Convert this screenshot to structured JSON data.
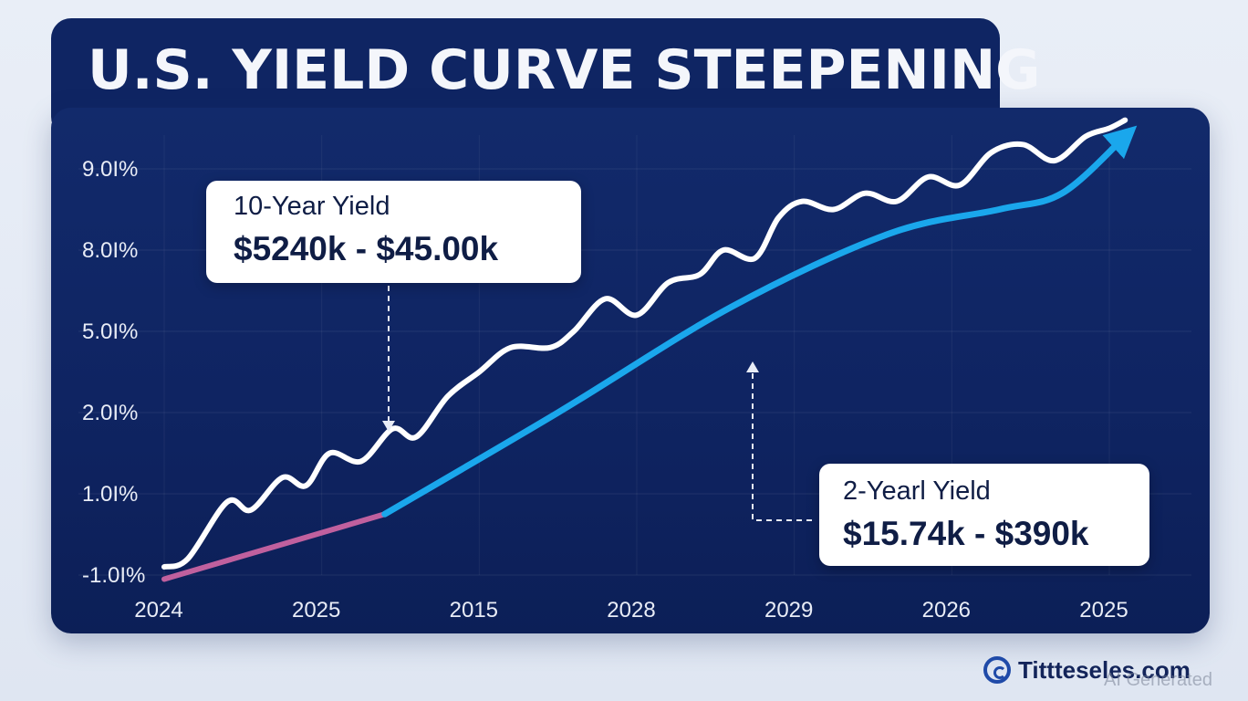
{
  "title": "U.S. YIELD CURVE STEEPENING",
  "callouts": {
    "ten_year": {
      "label": "10-Year Yield",
      "value": "$5240k - $45.00k"
    },
    "two_year": {
      "label": "2-Yearl Yield",
      "value": "$15.74k - $390k"
    }
  },
  "brand": {
    "name": "Tittteseles.com",
    "icon": "c-logo-icon"
  },
  "watermark": "AI Generated",
  "colors": {
    "panel": "#0f2563",
    "ten_year_line": "#ffffff",
    "two_year_line": "#1aa7ec",
    "two_year_early": "#c0609e"
  },
  "chart_data": {
    "type": "line",
    "title": "U.S. YIELD CURVE STEEPENING",
    "y_ticks": [
      "9.0I%",
      "8.0I%",
      "5.0I%",
      "2.0I%",
      "1.0I%",
      "-1.0I%"
    ],
    "x_ticks": [
      "2024",
      "2025",
      "2015",
      "2028",
      "2029",
      "2026",
      "2025"
    ],
    "y_index_range": [
      0,
      5
    ],
    "x_index_range": [
      0,
      6
    ],
    "grid": true,
    "series": [
      {
        "name": "10-Year Yield",
        "color": "#ffffff",
        "x": [
          0,
          0.15,
          0.4,
          0.55,
          0.75,
          0.9,
          1.05,
          1.25,
          1.45,
          1.6,
          1.8,
          2.0,
          2.2,
          2.45,
          2.6,
          2.8,
          3.0,
          3.2,
          3.4,
          3.55,
          3.75,
          3.9,
          4.05,
          4.25,
          4.45,
          4.65,
          4.85,
          5.05,
          5.25,
          5.45,
          5.65,
          5.85,
          6.0,
          6.1
        ],
        "y": [
          0.1,
          0.2,
          0.9,
          0.8,
          1.2,
          1.1,
          1.5,
          1.4,
          1.8,
          1.7,
          2.2,
          2.5,
          2.8,
          2.8,
          3.0,
          3.4,
          3.2,
          3.6,
          3.7,
          4.0,
          3.9,
          4.4,
          4.6,
          4.5,
          4.7,
          4.6,
          4.9,
          4.8,
          5.2,
          5.3,
          5.1,
          5.4,
          5.5,
          5.6
        ]
      },
      {
        "name": "2-Yearl Yield",
        "color": "#1aa7ec",
        "x": [
          0,
          1.4,
          1.4,
          2.5,
          3.6,
          4.6,
          5.3,
          5.7,
          6.1
        ],
        "y": [
          -0.05,
          0.75,
          0.75,
          2.0,
          3.3,
          4.2,
          4.5,
          4.7,
          5.4
        ]
      }
    ]
  }
}
